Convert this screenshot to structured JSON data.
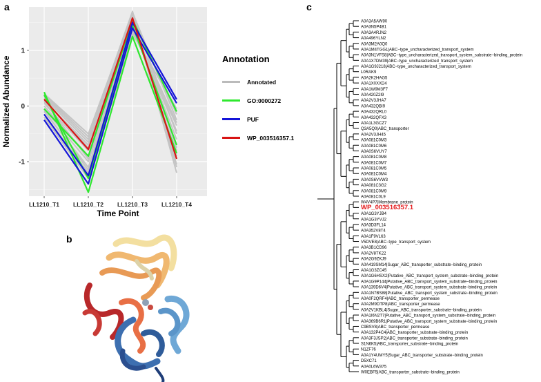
{
  "panels": {
    "a": "a",
    "b": "b",
    "c": "c"
  },
  "chart_data": {
    "type": "line",
    "xlabel": "Time Point",
    "ylabel": "Normalized Abundance",
    "categories": [
      "LL1210_T1",
      "LL1210_T2",
      "LL1210_T3",
      "LL1210_T4"
    ],
    "yticks": [
      -1,
      0,
      1
    ],
    "ylim": [
      -1.62,
      1.78
    ],
    "grid": true,
    "legend": {
      "title": "Annotation",
      "position": "right",
      "entries": [
        {
          "label": "Annotated",
          "color": "#bbbbbb"
        },
        {
          "label": "GO:0000272",
          "color": "#2ee82e"
        },
        {
          "label": "PUF",
          "color": "#1414d8"
        },
        {
          "label": "WP_003516357.1",
          "color": "#d81414"
        }
      ]
    },
    "series": [
      {
        "group": "Annotated",
        "color": "#c4c4c4",
        "values": [
          0.2,
          -0.55,
          1.7,
          -1.2
        ]
      },
      {
        "group": "Annotated",
        "color": "#c4c4c4",
        "values": [
          0.15,
          -0.65,
          1.62,
          -1.05
        ]
      },
      {
        "group": "Annotated",
        "color": "#c4c4c4",
        "values": [
          0.1,
          -0.7,
          1.55,
          -0.9
        ]
      },
      {
        "group": "Annotated",
        "color": "#c4c4c4",
        "values": [
          0.05,
          -0.8,
          1.5,
          -0.75
        ]
      },
      {
        "group": "Annotated",
        "color": "#c4c4c4",
        "values": [
          0.0,
          -0.9,
          1.45,
          -0.6
        ]
      },
      {
        "group": "Annotated",
        "color": "#c4c4c4",
        "values": [
          -0.05,
          -1.0,
          1.4,
          -0.45
        ]
      },
      {
        "group": "Annotated",
        "color": "#c4c4c4",
        "values": [
          -0.1,
          -1.1,
          1.35,
          -0.35
        ]
      },
      {
        "group": "Annotated",
        "color": "#c4c4c4",
        "values": [
          0.18,
          -0.6,
          1.68,
          -0.25
        ]
      },
      {
        "group": "Annotated",
        "color": "#c4c4c4",
        "values": [
          0.12,
          -0.75,
          1.6,
          -0.15
        ]
      },
      {
        "group": "Annotated",
        "color": "#c4c4c4",
        "values": [
          -0.15,
          -1.2,
          1.3,
          -0.05
        ]
      },
      {
        "group": "Annotated",
        "color": "#c4c4c4",
        "values": [
          0.22,
          -0.5,
          1.65,
          -0.5
        ]
      },
      {
        "group": "Annotated",
        "color": "#c4c4c4",
        "values": [
          -0.2,
          -1.3,
          1.25,
          -0.8
        ]
      },
      {
        "group": "Annotated",
        "color": "#c4c4c4",
        "values": [
          0.08,
          -0.95,
          1.58,
          -1.1
        ]
      },
      {
        "group": "Annotated",
        "color": "#c4c4c4",
        "values": [
          -0.08,
          -1.15,
          1.42,
          -0.3
        ]
      },
      {
        "group": "GO:0000272",
        "color": "#2ee82e",
        "values": [
          0.25,
          -1.55,
          1.25,
          -0.85
        ]
      },
      {
        "group": "GO:0000272",
        "color": "#2ee82e",
        "values": [
          -0.05,
          -0.9,
          1.55,
          -0.1
        ]
      },
      {
        "group": "GO:0000272",
        "color": "#2ee82e",
        "values": [
          0.2,
          -1.3,
          1.45,
          -0.7
        ]
      },
      {
        "group": "PUF",
        "color": "#1414d8",
        "values": [
          -0.25,
          -1.4,
          1.4,
          0.05
        ]
      },
      {
        "group": "PUF",
        "color": "#1414d8",
        "values": [
          -0.15,
          -1.25,
          1.5,
          0.12
        ]
      },
      {
        "group": "WP_003516357.1",
        "color": "#d81414",
        "values": [
          0.12,
          -0.78,
          1.58,
          -0.95
        ]
      }
    ]
  },
  "tree": {
    "highlight": "WP_003516357.1",
    "leaves": [
      "A0A3A5AW90",
      "A0A3N5P4B1",
      "A0A3A4RJN2",
      "A0A496YLN2",
      "A0A3M2A0Q0",
      "A0A1M4TGG1|ABC−type_uncharacterized_transport_system",
      "A0A3N1VFS8|ABC−type_uncharacterized_transport_system_substrate−binding_protein",
      "A0A1X7DM39|ABC−type_uncharacterized_transport_system",
      "A0A1G9J218|ABC−type_uncharacterized_transport_system",
      "L0RAK9",
      "A0A2K2HAG5",
      "A0A1X0XXD4",
      "A0A1W9M3F7",
      "A0A420Z2I9",
      "A0A2V3JHA7",
      "A0A432QBI9",
      "A0A432QRL0",
      "A0A432QFX3",
      "A0A1L3GCZ7",
      "Q3A5Q0|ABC_transporter",
      "A0A2V3JH45",
      "A0A081C0M3",
      "A0A081C0M6",
      "A0A0S6VUY7",
      "A0A081C0M8",
      "A0A081C0M7",
      "A0A081C0M5",
      "A0A081C0M4",
      "A0A0S6VVW3",
      "A0A081C3G2",
      "A0A081C0M9",
      "A0A081C0L9",
      "W4V4P7|Membrane_protein",
      "WP_003516357.1",
      "A0A1G3YJB4",
      "A0A1G3YVJ2",
      "A0A3D3FL14",
      "A0A352V8T4",
      "A0A1F9VL63",
      "V5DVE8|ABC−type_transport_system",
      "A0A3B1CD96",
      "A0A2V8TK22",
      "A0A2G9ZKJ9",
      "A0A419SM14|Sugar_ABC_transporter_substrate−binding_protein",
      "A0A1G3ZC45",
      "A0A1G6HSX2|Putative_ABC_transport_system_substrate−binding_protein",
      "A0A1G9P144|Putative_ABC_transport_system_substrate−binding_protein",
      "A0A139D6V4|Putative_ABC_transport_system_substrate−binding_protein",
      "A0A1N7BS88|Putative_ABC_transport_system_substrate−binding_protein",
      "A0A0F2QRF4|ABC_transporter_permease",
      "A0A2M9DTP8|ABC_transporter_permease",
      "A0A2V1KBL4|Sugar_ABC_transporter_substrate−binding_protein",
      "A0A1I6N2T7|Putative_ABC_transport_system_substrate−binding_protein",
      "A0A369B6R1|Putative_ABC_transport_system_substrate−binding_protein",
      "C9BSV8|ABC_transporter_permease",
      "A0A132P4C4|ABC_transporter_substrate−binding_protein",
      "A0A3F3JSP2|ABC_transporter_substrate−binding_protein",
      "S1N6K5|ABC_transporter_substrate−binding_protein",
      "N1ZF76",
      "A0A1Y4UMY5|Sugar_ABC_transporter_substrate−binding_protein",
      "D5XC71",
      "A0A0L6W375",
      "W0EBF5|ABC_transporter_substrate−binding_protein"
    ]
  }
}
